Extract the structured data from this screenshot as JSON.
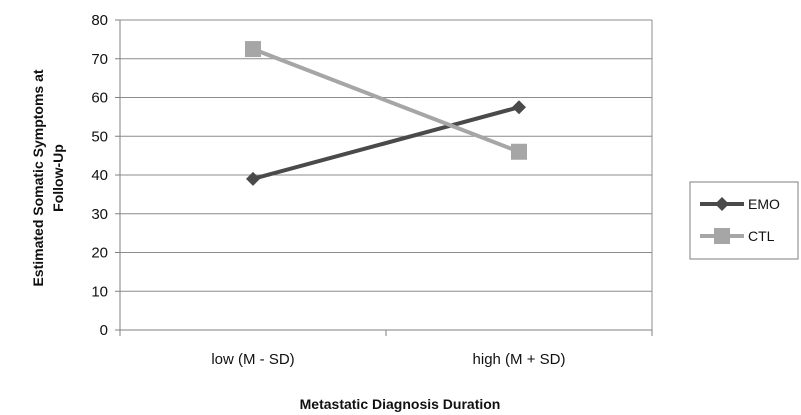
{
  "chart_data": {
    "type": "line",
    "title": "",
    "xlabel": "Metastatic Diagnosis Duration",
    "ylabel_lines": [
      "Estimated Somatic Symptoms at",
      "Follow-Up"
    ],
    "categories": [
      "low (M - SD)",
      "high (M + SD)"
    ],
    "ylim": [
      0,
      80
    ],
    "yticks": [
      0,
      10,
      20,
      30,
      40,
      50,
      60,
      70,
      80
    ],
    "grid": true,
    "legend_position": "right",
    "series": [
      {
        "name": "EMO",
        "values": [
          39,
          57.5
        ],
        "color": "#4a4a4a",
        "marker": "diamond"
      },
      {
        "name": "CTL",
        "values": [
          72.5,
          46
        ],
        "color": "#a6a6a6",
        "marker": "square"
      }
    ]
  }
}
